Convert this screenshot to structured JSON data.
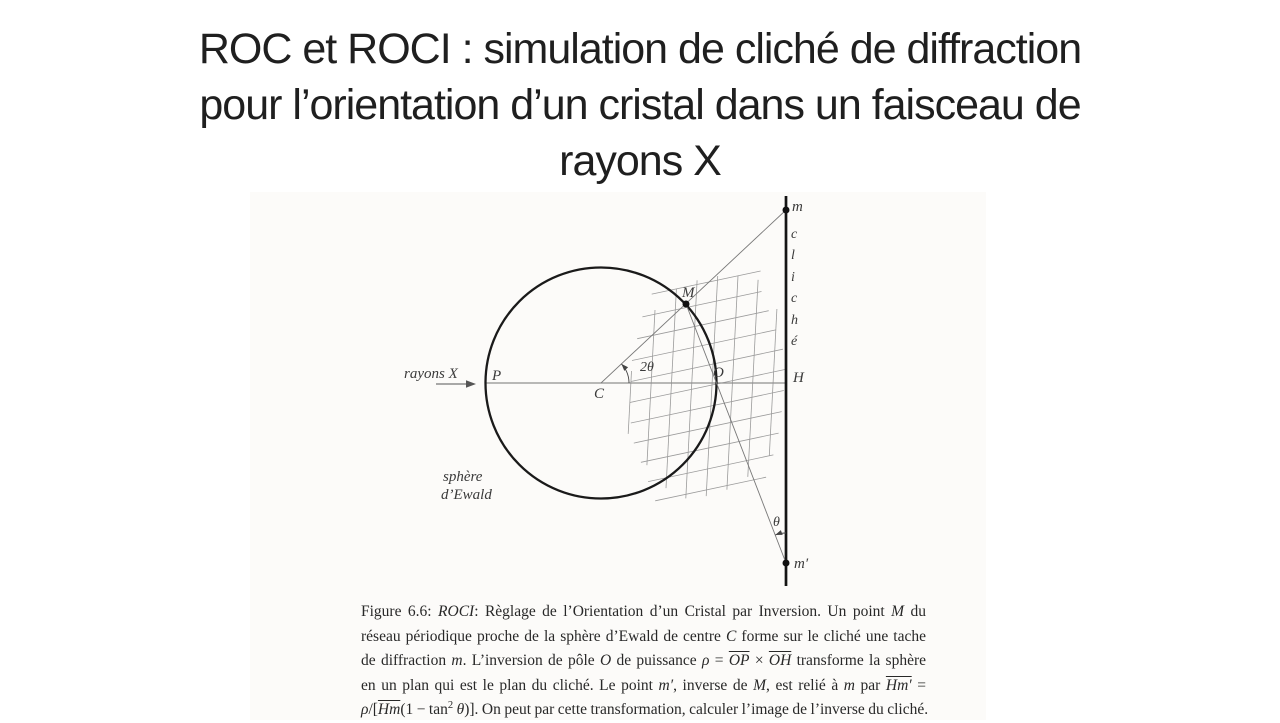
{
  "slide": {
    "title": {
      "lines": [
        "ROC et ROCI : simulation de cliché de diffraction",
        "pour l’orientation d’un cristal dans un faisceau de",
        "rayons X"
      ],
      "color": "#1f1f1f"
    }
  },
  "figure": {
    "labels": {
      "rayons_x": "rayons X",
      "P": "P",
      "C": "C",
      "M": "M",
      "O": "O",
      "H": "H",
      "m": "m",
      "m_prime": "m′",
      "angle_2theta": "2θ",
      "angle_theta": "θ",
      "sphere_line1": "sphère",
      "sphere_line2": "d’Ewald",
      "cliche_vertical": [
        "c",
        "l",
        "i",
        "c",
        "h",
        "é"
      ]
    },
    "colors": {
      "sphere_stroke": "#1a1a1a",
      "plate_stroke": "#141414",
      "axis": "#8f8f8f",
      "ray_line": "#787878",
      "grid": "#9b9b9b",
      "angle_mark": "#444444",
      "arrow": "#555555",
      "dot": "#111111",
      "label": "#3a3a3a"
    }
  },
  "caption": {
    "figure_number": "Figure 6.6",
    "lines": [
      {
        "justify": true,
        "segments": [
          {
            "t": "Figure 6.6: "
          },
          {
            "t": "ROCI",
            "i": true
          },
          {
            "t": ": Règlage de l’Orientation d’un Cristal par Inversion. Un point "
          },
          {
            "t": "M",
            "i": true
          },
          {
            "t": " du"
          }
        ]
      },
      {
        "justify": true,
        "segments": [
          {
            "t": "réseau périodique proche de la sphère d’Ewald de centre "
          },
          {
            "t": "C",
            "i": true
          },
          {
            "t": " forme sur le cliché une tache"
          }
        ]
      },
      {
        "justify": true,
        "segments": [
          {
            "t": "de diffraction "
          },
          {
            "t": "m",
            "i": true
          },
          {
            "t": ". L’inversion de pôle "
          },
          {
            "t": "O",
            "i": true
          },
          {
            "t": " de puissance "
          },
          {
            "t": "ρ",
            "i": true
          },
          {
            "t": " = "
          },
          {
            "t": "OP",
            "i": true,
            "o": true
          },
          {
            "t": " × "
          },
          {
            "t": "OH",
            "i": true,
            "o": true
          },
          {
            "t": " transforme la sphère"
          }
        ]
      },
      {
        "justify": true,
        "segments": [
          {
            "t": "en un plan qui est le plan du cliché. Le point "
          },
          {
            "t": "m′",
            "i": true
          },
          {
            "t": ", inverse de "
          },
          {
            "t": "M",
            "i": true
          },
          {
            "t": ", est relié à "
          },
          {
            "t": "m",
            "i": true
          },
          {
            "t": " par "
          },
          {
            "t": "Hm′",
            "i": true,
            "o": true
          },
          {
            "t": " ="
          }
        ]
      },
      {
        "justify": false,
        "segments": [
          {
            "t": "ρ",
            "i": true
          },
          {
            "t": "/["
          },
          {
            "t": "Hm",
            "i": true,
            "o": true
          },
          {
            "t": "(1 − tan"
          },
          {
            "t": "2",
            "sup": true
          },
          {
            "t": " "
          },
          {
            "t": "θ",
            "i": true
          },
          {
            "t": ")]. On peut par cette transformation, calculer l’image de l’inverse du cliché."
          }
        ]
      }
    ]
  }
}
